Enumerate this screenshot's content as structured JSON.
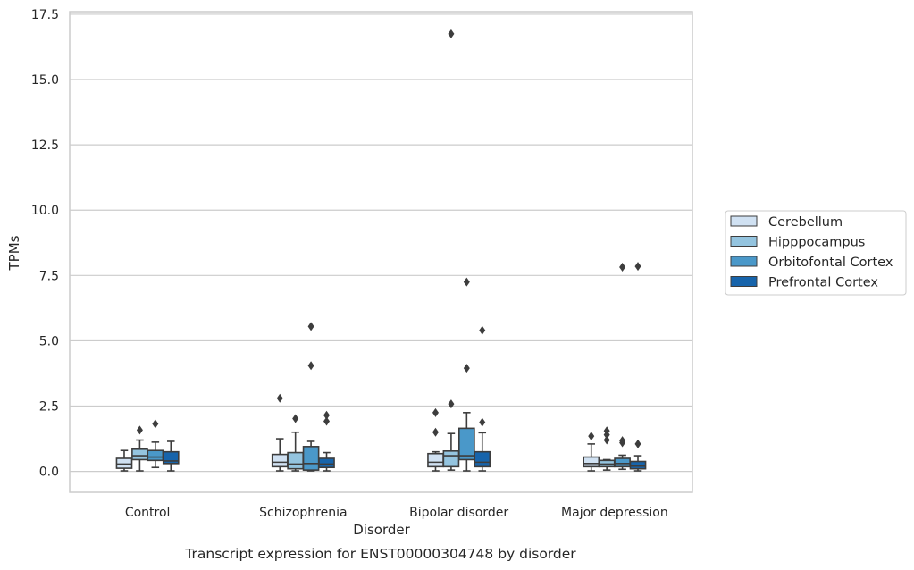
{
  "chart_data": {
    "type": "box",
    "caption": "Transcript expression for ENST00000304748 by disorder",
    "xlabel": "Disorder",
    "ylabel": "TPMs",
    "ylim": [
      -0.8,
      17.6
    ],
    "yticks": [
      0.0,
      2.5,
      5.0,
      7.5,
      10.0,
      12.5,
      15.0,
      17.5
    ],
    "ytick_labels": [
      "0.0",
      "2.5",
      "5.0",
      "7.5",
      "10.0",
      "12.5",
      "15.0",
      "17.5"
    ],
    "grid": "horizontal",
    "legend_position": "right",
    "categories": [
      "Control",
      "Schizophrenia",
      "Bipolar disorder",
      "Major depression"
    ],
    "series": [
      {
        "name": "Cerebellum",
        "color": "#d0e1f2",
        "boxes": [
          {
            "whislo": 0.02,
            "q1": 0.12,
            "med": 0.28,
            "q3": 0.5,
            "whishi": 0.8,
            "fliers": []
          },
          {
            "whislo": 0.02,
            "q1": 0.18,
            "med": 0.35,
            "q3": 0.65,
            "whishi": 1.25,
            "fliers": [
              2.8
            ]
          },
          {
            "whislo": 0.02,
            "q1": 0.18,
            "med": 0.35,
            "q3": 0.68,
            "whishi": 0.75,
            "fliers": [
              1.5,
              2.25
            ]
          },
          {
            "whislo": 0.02,
            "q1": 0.18,
            "med": 0.3,
            "q3": 0.55,
            "whishi": 1.05,
            "fliers": [
              1.35
            ]
          }
        ]
      },
      {
        "name": "Hipppocampus",
        "color": "#94c4df",
        "boxes": [
          {
            "whislo": 0.02,
            "q1": 0.45,
            "med": 0.6,
            "q3": 0.85,
            "whishi": 1.2,
            "fliers": [
              1.58
            ]
          },
          {
            "whislo": 0.02,
            "q1": 0.1,
            "med": 0.28,
            "q3": 0.72,
            "whishi": 1.5,
            "fliers": [
              2.02
            ]
          },
          {
            "whislo": 0.05,
            "q1": 0.18,
            "med": 0.6,
            "q3": 0.78,
            "whishi": 1.45,
            "fliers": [
              2.58,
              16.75
            ]
          },
          {
            "whislo": 0.05,
            "q1": 0.18,
            "med": 0.28,
            "q3": 0.42,
            "whishi": 0.45,
            "fliers": [
              1.2,
              1.4,
              1.55
            ]
          }
        ]
      },
      {
        "name": "Orbitofontal Cortex",
        "color": "#4a98c9",
        "boxes": [
          {
            "whislo": 0.15,
            "q1": 0.42,
            "med": 0.55,
            "q3": 0.8,
            "whishi": 1.12,
            "fliers": [
              1.82
            ]
          },
          {
            "whislo": 0.02,
            "q1": 0.05,
            "med": 0.3,
            "q3": 0.95,
            "whishi": 1.15,
            "fliers": [
              4.05,
              5.55
            ]
          },
          {
            "whislo": 0.02,
            "q1": 0.45,
            "med": 0.6,
            "q3": 1.65,
            "whishi": 2.25,
            "fliers": [
              3.95,
              7.25
            ]
          },
          {
            "whislo": 0.08,
            "q1": 0.18,
            "med": 0.3,
            "q3": 0.5,
            "whishi": 0.62,
            "fliers": [
              1.1,
              1.18,
              7.82
            ]
          }
        ]
      },
      {
        "name": "Prefrontal Cortex",
        "color": "#1764ab",
        "boxes": [
          {
            "whislo": 0.02,
            "q1": 0.3,
            "med": 0.4,
            "q3": 0.75,
            "whishi": 1.15,
            "fliers": []
          },
          {
            "whislo": 0.02,
            "q1": 0.15,
            "med": 0.28,
            "q3": 0.5,
            "whishi": 0.72,
            "fliers": [
              1.92,
              2.15
            ]
          },
          {
            "whislo": 0.02,
            "q1": 0.18,
            "med": 0.35,
            "q3": 0.75,
            "whishi": 1.48,
            "fliers": [
              1.88,
              5.4
            ]
          },
          {
            "whislo": 0.02,
            "q1": 0.1,
            "med": 0.2,
            "q3": 0.38,
            "whishi": 0.6,
            "fliers": [
              1.05,
              7.85
            ]
          }
        ]
      }
    ]
  }
}
